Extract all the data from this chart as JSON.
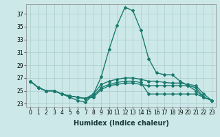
{
  "xlabel": "Humidex (Indice chaleur)",
  "x": [
    0,
    1,
    2,
    3,
    4,
    5,
    6,
    7,
    8,
    9,
    10,
    11,
    12,
    13,
    14,
    15,
    16,
    17,
    18,
    19,
    20,
    21,
    22,
    23
  ],
  "series": [
    [
      26.5,
      25.5,
      25.0,
      25.0,
      24.5,
      24.0,
      23.5,
      23.2,
      24.5,
      27.2,
      31.5,
      35.2,
      38.0,
      37.5,
      34.5,
      30.0,
      27.8,
      27.5,
      27.5,
      26.5,
      25.8,
      25.0,
      24.0,
      23.5
    ],
    [
      26.5,
      25.5,
      25.0,
      25.0,
      24.5,
      24.2,
      24.0,
      23.8,
      24.5,
      26.0,
      26.5,
      26.8,
      27.0,
      27.0,
      26.8,
      26.5,
      26.5,
      26.3,
      26.2,
      26.2,
      26.0,
      25.8,
      24.5,
      23.5
    ],
    [
      26.5,
      25.5,
      25.0,
      25.0,
      24.5,
      24.2,
      24.0,
      23.8,
      24.2,
      25.5,
      26.0,
      26.3,
      26.5,
      26.5,
      26.3,
      24.5,
      24.5,
      24.5,
      24.5,
      24.5,
      24.5,
      24.5,
      24.0,
      23.5
    ],
    [
      26.5,
      25.5,
      25.0,
      25.0,
      24.5,
      24.2,
      24.0,
      23.8,
      24.0,
      25.2,
      25.8,
      26.0,
      26.2,
      26.2,
      26.0,
      25.8,
      25.8,
      25.8,
      25.8,
      25.8,
      25.8,
      25.5,
      24.0,
      23.5
    ]
  ],
  "line_color": "#1a7a6e",
  "bg_color": "#cce8e8",
  "grid_color": "#aacccc",
  "ylim": [
    22.5,
    38.5
  ],
  "yticks": [
    23,
    25,
    27,
    29,
    31,
    33,
    35,
    37
  ],
  "xlim": [
    -0.5,
    23.5
  ],
  "marker": "D",
  "marker_size": 2,
  "line_width": 1.0,
  "tick_fontsize": 5.5,
  "label_fontsize": 7.0
}
